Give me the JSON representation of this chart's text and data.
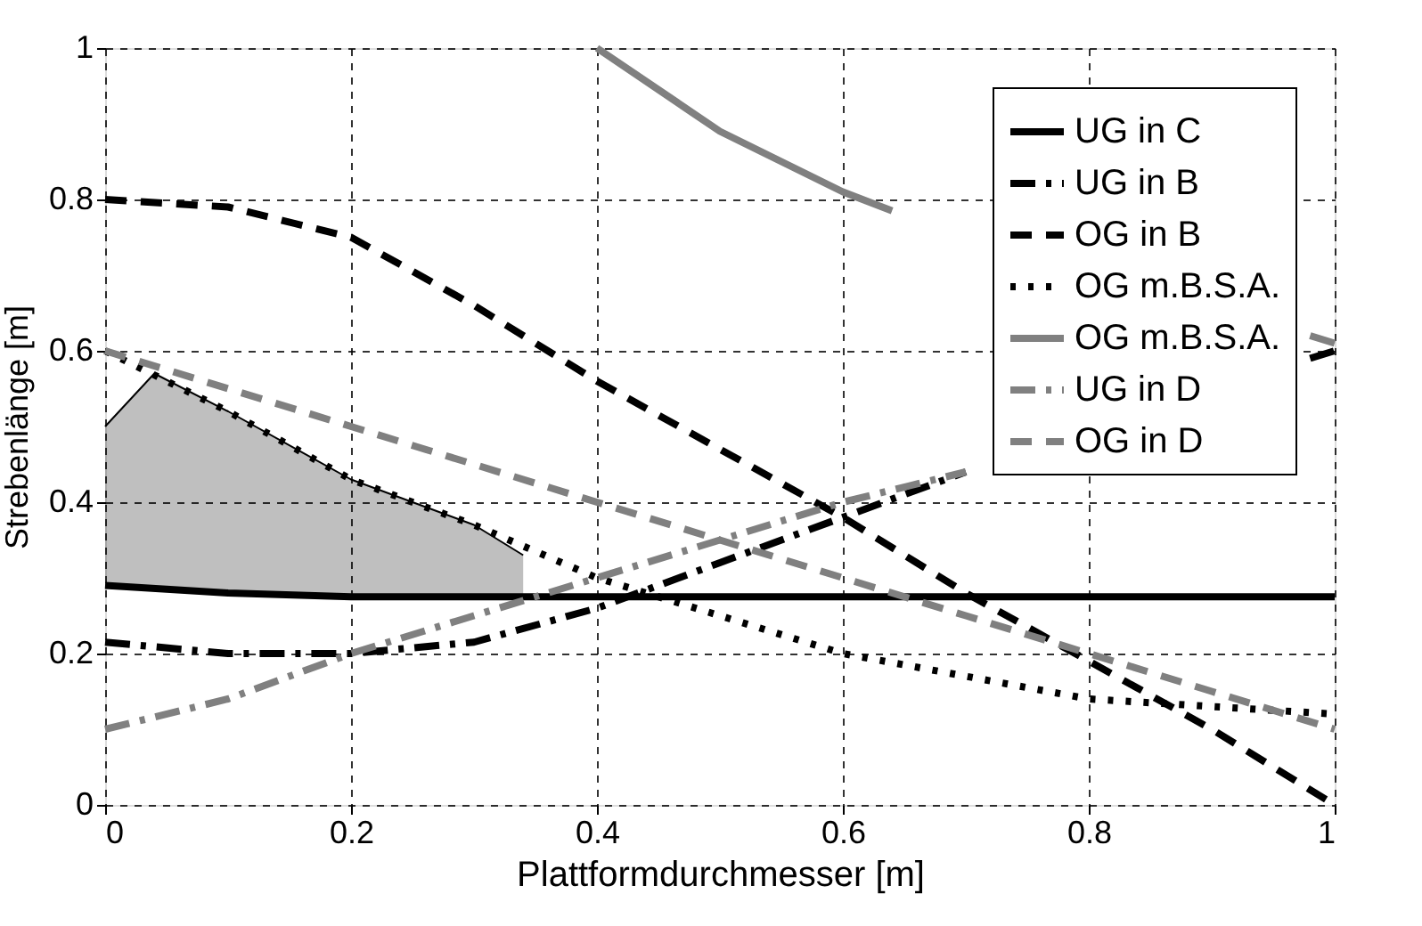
{
  "chart_data": {
    "type": "line",
    "xlabel": "Plattformdurchmesser [m]",
    "ylabel": "Strebenlänge [m]",
    "xlim": [
      0,
      1
    ],
    "ylim": [
      0,
      1
    ],
    "xticks": [
      0,
      0.2,
      0.4,
      0.6,
      0.8,
      1
    ],
    "yticks": [
      0,
      0.2,
      0.4,
      0.6,
      0.8,
      1
    ],
    "grid": true,
    "legend": "top right",
    "marker": "none",
    "series": [
      {
        "name": "UG in C",
        "color": "#000000",
        "line_style": "solid",
        "x": [
          0,
          0.1,
          0.2,
          0.4,
          0.6,
          0.8,
          1
        ],
        "values": [
          0.29,
          0.28,
          0.275,
          0.275,
          0.275,
          0.275,
          0.275
        ]
      },
      {
        "name": "UG in B",
        "color": "#000000",
        "line_style": "dashdot",
        "x": [
          0,
          0.1,
          0.2,
          0.3,
          0.4,
          0.5,
          0.6,
          0.7,
          0.75,
          0.98,
          1
        ],
        "values": [
          0.215,
          0.2,
          0.2,
          0.215,
          0.26,
          0.32,
          0.38,
          0.44,
          null,
          0.59,
          0.6
        ]
      },
      {
        "name": "OG in B",
        "color": "#000000",
        "line_style": "dashed",
        "x": [
          0,
          0.1,
          0.2,
          0.3,
          0.4,
          0.5,
          0.6,
          0.7,
          0.8,
          0.9,
          1
        ],
        "values": [
          0.8,
          0.79,
          0.75,
          0.66,
          0.56,
          0.47,
          0.38,
          0.28,
          0.19,
          0.1,
          0.0
        ]
      },
      {
        "name": "OG m.B.S.A.",
        "color": "#000000",
        "line_style": "dotted",
        "x": [
          0,
          0.1,
          0.2,
          0.3,
          0.4,
          0.5,
          0.6,
          0.7,
          0.8,
          0.9,
          1
        ],
        "values": [
          0.6,
          0.52,
          0.43,
          0.37,
          0.3,
          0.25,
          0.2,
          0.17,
          0.14,
          0.13,
          0.12
        ]
      },
      {
        "name": "OG m.B.S.A.",
        "color": "#808080",
        "line_style": "solid",
        "x": [
          0.4,
          0.5,
          0.6,
          0.64,
          0.8,
          0.98,
          1
        ],
        "values": [
          1.0,
          0.89,
          0.81,
          0.785,
          null,
          0.62,
          0.61
        ]
      },
      {
        "name": "UG in D",
        "color": "#808080",
        "line_style": "dashdot",
        "x": [
          0,
          0.1,
          0.2,
          0.3,
          0.4,
          0.5,
          0.6,
          0.7
        ],
        "values": [
          0.1,
          0.14,
          0.2,
          0.25,
          0.3,
          0.35,
          0.4,
          0.44
        ]
      },
      {
        "name": "OG in D",
        "color": "#808080",
        "line_style": "dashed",
        "x": [
          0,
          0.2,
          0.4,
          0.5,
          0.6,
          0.7,
          0.8,
          0.9,
          1
        ],
        "values": [
          0.6,
          0.5,
          0.4,
          0.35,
          0.3,
          0.25,
          0.2,
          0.15,
          0.1
        ]
      },
      {
        "color": "#000000",
        "x": [
          0,
          0.04,
          0.1,
          0.2,
          0.3,
          0.34
        ],
        "lower": [
          0.29,
          0.285,
          0.28,
          0.275,
          0.275,
          0.275
        ],
        "upper": [
          0.5,
          0.57,
          0.52,
          0.43,
          0.37,
          0.33
        ],
        "values": [
          0.5,
          0.57,
          0.52,
          0.43,
          0.37,
          0.33
        ]
      }
    ]
  }
}
